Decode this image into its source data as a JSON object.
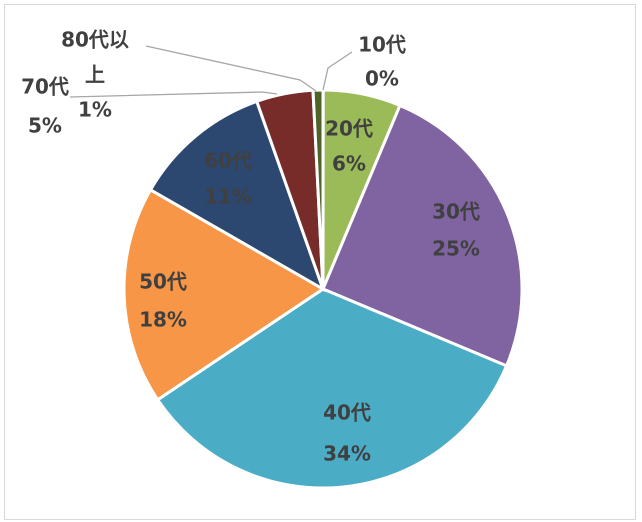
{
  "chart_data": {
    "type": "pie",
    "title": "",
    "start_angle_deg": 0,
    "slices": [
      {
        "label": "10代",
        "value": 0.02,
        "percent_text": "0%",
        "color": "#4f6228"
      },
      {
        "label": "20代",
        "value": 6.3,
        "percent_text": "6%",
        "color": "#9bbb59"
      },
      {
        "label": "30代",
        "value": 25.0,
        "percent_text": "25%",
        "color": "#8064a2"
      },
      {
        "label": "40代",
        "value": 34.3,
        "percent_text": "34%",
        "color": "#4bacc6"
      },
      {
        "label": "50代",
        "value": 17.7,
        "percent_text": "18%",
        "color": "#f79646"
      },
      {
        "label": "60代",
        "value": 11.3,
        "percent_text": "11%",
        "color": "#2c4770"
      },
      {
        "label": "70代",
        "value": 4.6,
        "percent_text": "5%",
        "color": "#772c2a"
      },
      {
        "label": "80代以上",
        "value": 0.8,
        "percent_text": "1%",
        "color": "#4f6228"
      }
    ]
  }
}
